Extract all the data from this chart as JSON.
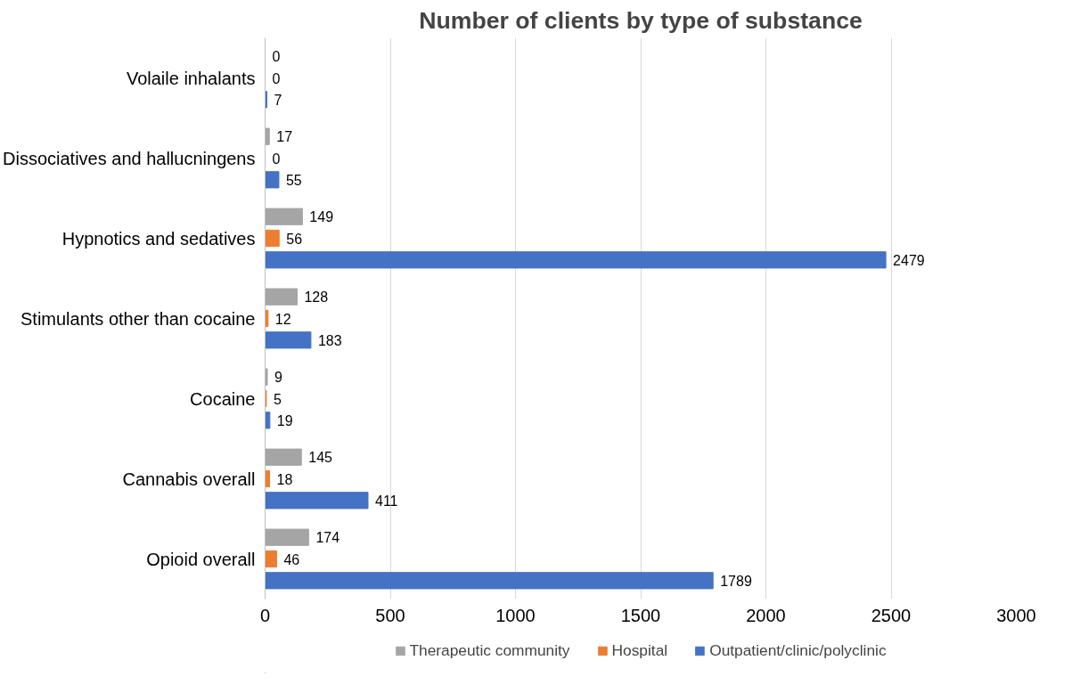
{
  "chart_data": {
    "type": "bar",
    "orientation": "horizontal",
    "title": "Number of clients by type of substance",
    "categories": [
      "Volaile inhalants",
      "Dissociatives and hallucningens",
      "Hypnotics and sedatives",
      "Stimulants other than cocaine",
      "Cocaine",
      "Cannabis overall",
      "Opioid overall"
    ],
    "series": [
      {
        "name": "Therapeutic community",
        "color": "#a5a5a5",
        "values": [
          0,
          17,
          149,
          128,
          9,
          145,
          174
        ]
      },
      {
        "name": "Hospital",
        "color": "#ed7d31",
        "values": [
          0,
          0,
          56,
          12,
          5,
          18,
          46
        ]
      },
      {
        "name": "Outpatient/clinic/polyclinic",
        "color": "#4472c4",
        "values": [
          7,
          55,
          2479,
          183,
          19,
          411,
          1789
        ]
      }
    ],
    "xlim": [
      0,
      3000
    ],
    "xticks": [
      0,
      500,
      1000,
      1500,
      2000,
      2500,
      3000
    ],
    "grid": "x",
    "legend": "bottom",
    "data_labels": true
  }
}
